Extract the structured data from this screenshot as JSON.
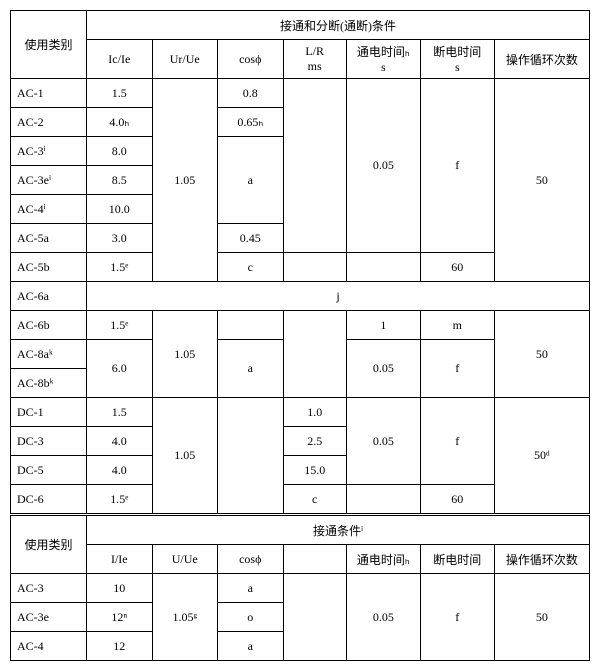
{
  "header_group1": "接通和分断(通断)条件",
  "header_group2": "接通条件ⁱ",
  "col_use_class": "使用类别",
  "col_Ic_Ie": "Ic/Ie",
  "col_Ur_Ue": "Ur/Ue",
  "col_cosphi": "cosϕ",
  "col_LR1": "L/R",
  "col_LR2": "ms",
  "col_on1": "通电时间ₕ",
  "col_on2": "s",
  "col_off1": "断电时间",
  "col_off2": "s",
  "col_cycles": "操作循环次数",
  "col_I_Ie": "I/Ie",
  "col_U_Ue": "U/Ue",
  "col_on_b": "通电时间ₕ",
  "col_off_b": "断电时间",
  "rows1": {
    "AC1": {
      "label": "AC-1",
      "IcIe": "1.5",
      "cos": "0.8"
    },
    "AC2": {
      "label": "AC-2",
      "IcIe": "4.0ₕ",
      "cos": "0.65ₕ"
    },
    "AC3": {
      "label": "AC-3ⁱ",
      "IcIe": "8.0"
    },
    "AC3e": {
      "label": "AC-3eⁱ",
      "IcIe": "8.5"
    },
    "AC4": {
      "label": "AC-4ⁱ",
      "IcIe": "10.0"
    },
    "AC5a": {
      "label": "AC-5a",
      "IcIe": "3.0",
      "cos": "0.45"
    },
    "AC5b": {
      "label": "AC-5b",
      "IcIe": "1.5ᵉ",
      "cos": "c",
      "off": "60"
    },
    "AC6a": {
      "label": "AC-6a",
      "note": "j"
    },
    "AC6b": {
      "label": "AC-6b",
      "IcIe": "1.5ᵉ",
      "on": "1",
      "off": "m"
    },
    "AC8a": {
      "label": "AC-8aᵏ"
    },
    "AC8b": {
      "label": "AC-8bᵏ"
    },
    "DC1": {
      "label": "DC-1",
      "IcIe": "1.5",
      "LR": "1.0"
    },
    "DC3": {
      "label": "DC-3",
      "IcIe": "4.0",
      "LR": "2.5"
    },
    "DC5": {
      "label": "DC-5",
      "IcIe": "4.0",
      "LR": "15.0"
    },
    "DC6": {
      "label": "DC-6",
      "IcIe": "1.5ᵉ",
      "LR": "c",
      "off": "60"
    }
  },
  "shared": {
    "UrUe_105": "1.05",
    "cos_a": "a",
    "on_005": "0.05",
    "off_f": "f",
    "cycles_50": "50",
    "cycles_50d": "50ᵈ",
    "IcIe_6": "6.0"
  },
  "rows2": {
    "AC3": {
      "label": "AC-3",
      "IIe": "10",
      "cos": "a"
    },
    "AC3e": {
      "label": "AC-3e",
      "IIe": "12ⁿ",
      "cos": "o"
    },
    "AC4": {
      "label": "AC-4",
      "IIe": "12",
      "cos": "a"
    }
  },
  "shared2": {
    "UUe": "1.05ᵍ",
    "on": "0.05",
    "off": "f",
    "cycles": "50"
  }
}
